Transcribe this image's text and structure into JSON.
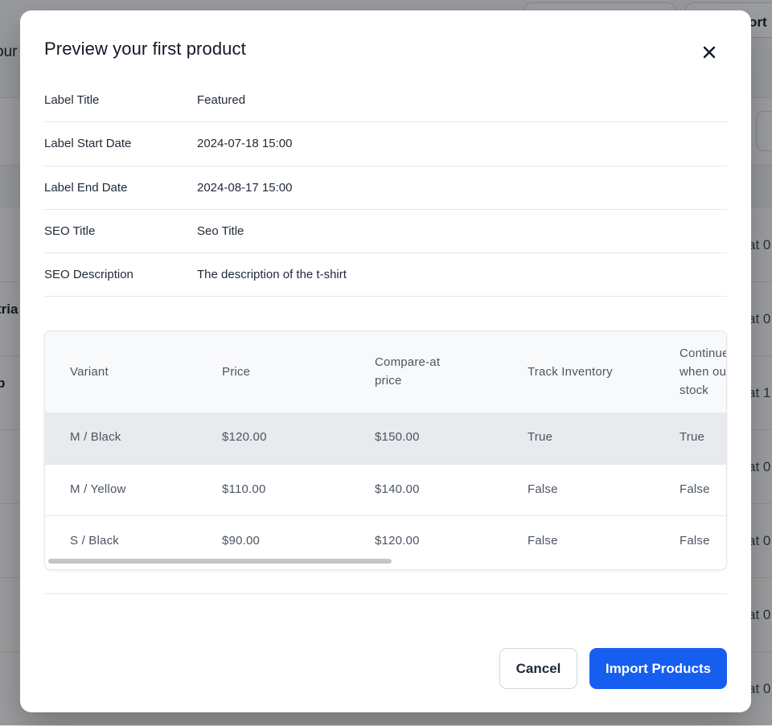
{
  "background": {
    "heading_fragment": "our",
    "top_button_fragment": "ort",
    "rows": [
      {
        "left": "",
        "right": "at 0"
      },
      {
        "left": "tria",
        "right": "at 0"
      },
      {
        "left": "p",
        "right": "at 1"
      },
      {
        "left": "",
        "right": "at 0"
      },
      {
        "left": "",
        "right": "at 0"
      },
      {
        "left": "",
        "right": "at 0"
      },
      {
        "left": "",
        "right": "at 0"
      }
    ]
  },
  "modal": {
    "title": "Preview your first product",
    "close_icon": "close-icon",
    "fields": [
      {
        "label": "Label Title",
        "value": "Featured"
      },
      {
        "label": "Label Start Date",
        "value": "2024-07-18 15:00"
      },
      {
        "label": "Label End Date",
        "value": "2024-08-17 15:00"
      },
      {
        "label": "SEO Title",
        "value": "Seo Title"
      },
      {
        "label": "SEO Description",
        "value": "The description of the t-shirt"
      }
    ],
    "table": {
      "headers": [
        "Variant",
        "Price",
        "Compare-at\nprice",
        "Track Inventory",
        "Continue selling\nwhen out of\nstock"
      ],
      "rows": [
        {
          "variant": "M / Black",
          "price": "$120.00",
          "compare_at": "$150.00",
          "track_inventory": "True",
          "continue_selling": "True"
        },
        {
          "variant": "M / Yellow",
          "price": "$110.00",
          "compare_at": "$140.00",
          "track_inventory": "False",
          "continue_selling": "False"
        },
        {
          "variant": "S / Black",
          "price": "$90.00",
          "compare_at": "$120.00",
          "track_inventory": "False",
          "continue_selling": "False"
        }
      ]
    },
    "buttons": {
      "cancel": "Cancel",
      "import": "Import Products"
    }
  },
  "colors": {
    "primary": "#155eef",
    "highlight_row": "#e8eaee",
    "overlay": "#16181d"
  }
}
